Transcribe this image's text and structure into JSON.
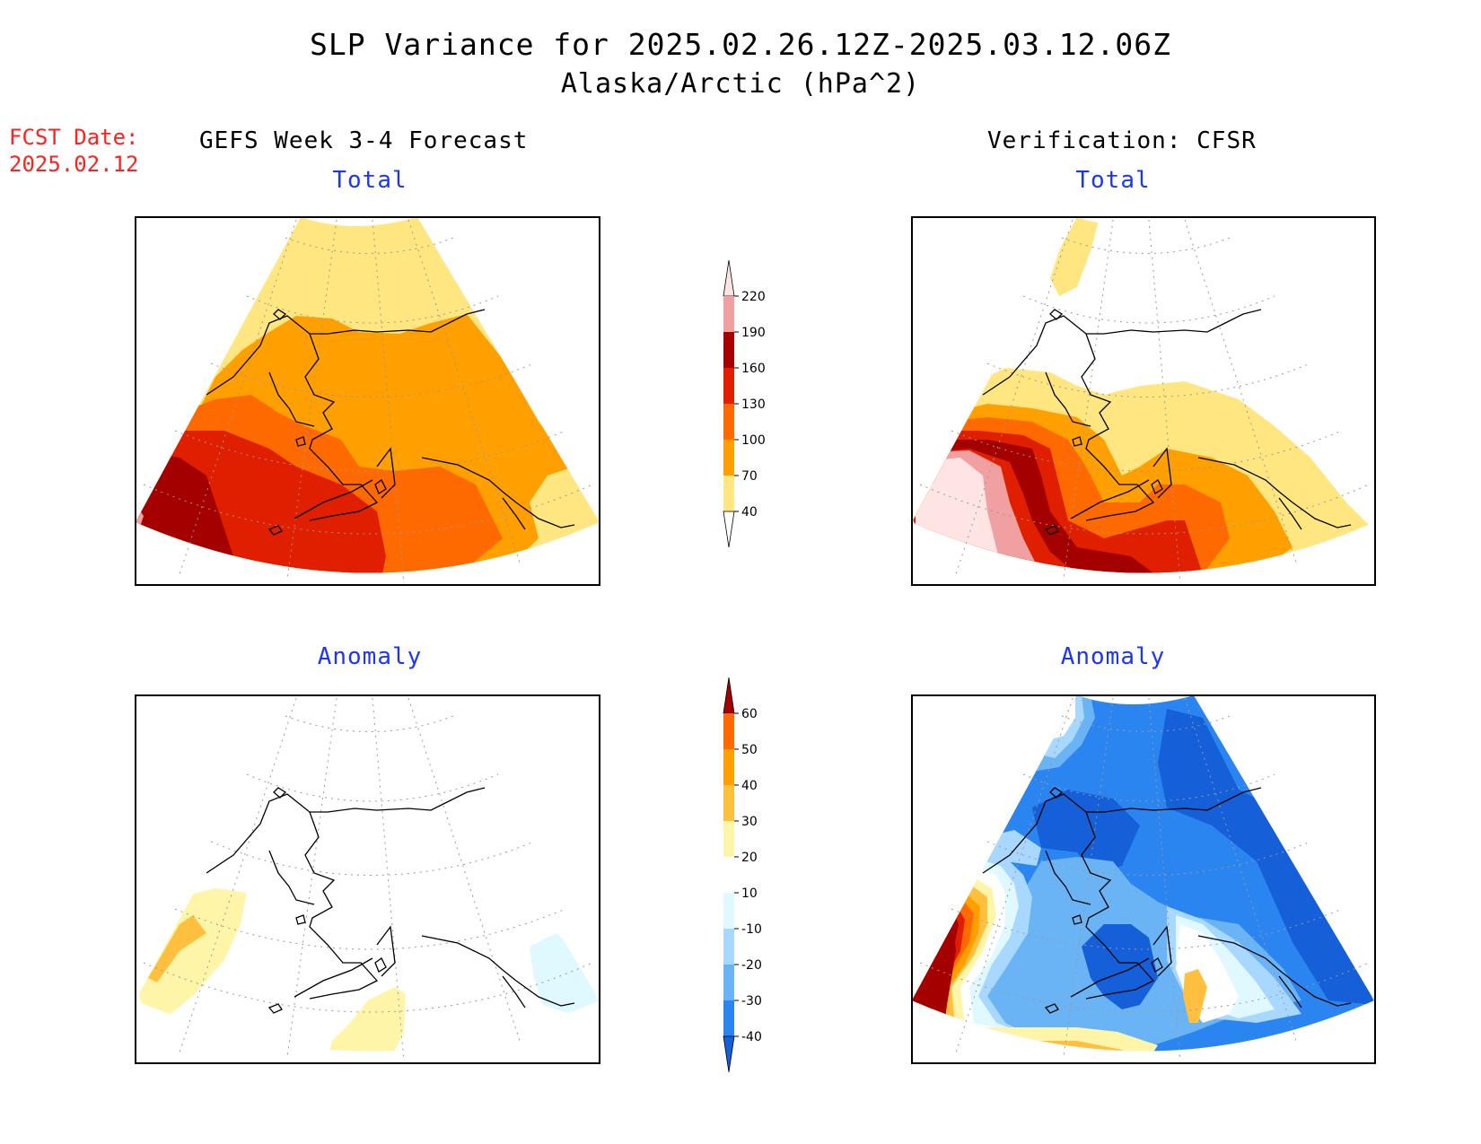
{
  "title": "SLP Variance for 2025.02.26.12Z-2025.03.12.06Z",
  "subtitle": "Alaska/Arctic (hPa^2)",
  "fcst_date": {
    "label": "FCST Date:",
    "value": "2025.02.12"
  },
  "columns": {
    "forecast": "GEFS Week 3-4 Forecast",
    "verification": "Verification: CFSR"
  },
  "panels": {
    "forecast_total": "Total",
    "verification_total": "Total",
    "forecast_anomaly": "Anomaly",
    "verification_anomaly": "Anomaly"
  },
  "colorbars": {
    "total": {
      "labels": [
        "40",
        "70",
        "100",
        "130",
        "160",
        "190",
        "220"
      ],
      "colors": [
        "#ffffff",
        "#ffe680",
        "#ffa000",
        "#ff6a00",
        "#e01e00",
        "#a50000",
        "#f0a0a0",
        "#ffe4e4"
      ]
    },
    "anomaly": {
      "labels": [
        "-40",
        "-30",
        "-20",
        "-10",
        "10",
        "20",
        "30",
        "40",
        "50",
        "60"
      ],
      "colors": [
        "#1560d8",
        "#2a85f0",
        "#6ab4f5",
        "#a8d8ff",
        "#e0f8ff",
        "#ffffff",
        "#fff5a8",
        "#ffc040",
        "#ffa000",
        "#ff6a00",
        "#e01e00",
        "#a50000"
      ]
    }
  }
}
